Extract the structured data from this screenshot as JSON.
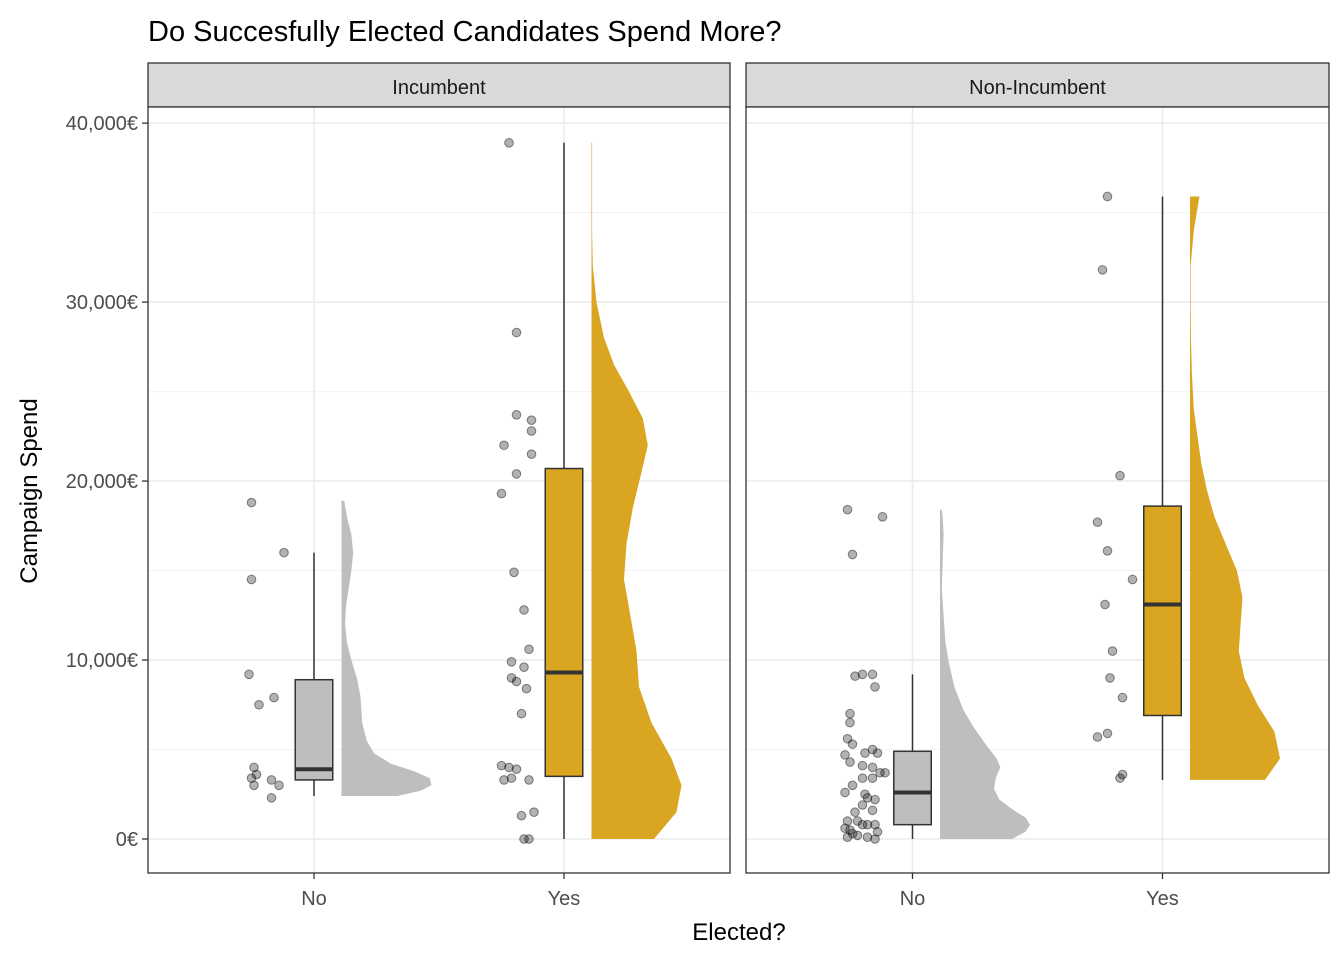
{
  "chart_data": {
    "type": "raincloud",
    "title": "Do Succesfully Elected Candidates Spend More?",
    "xlabel": "Elected?",
    "ylabel": "Campaign Spend",
    "ylim": [
      -1900,
      40900
    ],
    "y_ticks": [
      0,
      10000,
      20000,
      30000,
      40000
    ],
    "y_tick_labels": [
      "0€",
      "10,000€",
      "20,000€",
      "30,000€",
      "40,000€"
    ],
    "categories": [
      "No",
      "Yes"
    ],
    "grid": true,
    "legend": "none",
    "colors": {
      "No": "#bebebe",
      "Yes": "#daa520"
    },
    "panels": [
      {
        "name": "Incumbent",
        "groups": [
          {
            "category": "No",
            "box": {
              "whisker_low": 2400,
              "q1": 3300,
              "median": 3900,
              "q3": 8900,
              "whisker_high": 16000
            },
            "density": [
              [
                2400,
                0.62
              ],
              [
                2700,
                0.88
              ],
              [
                3000,
                1.0
              ],
              [
                3400,
                0.98
              ],
              [
                3800,
                0.8
              ],
              [
                4200,
                0.55
              ],
              [
                4800,
                0.36
              ],
              [
                5500,
                0.28
              ],
              [
                6500,
                0.23
              ],
              [
                7300,
                0.22
              ],
              [
                8000,
                0.21
              ],
              [
                9000,
                0.17
              ],
              [
                10000,
                0.11
              ],
              [
                11000,
                0.06
              ],
              [
                12000,
                0.04
              ],
              [
                13000,
                0.05
              ],
              [
                14000,
                0.08
              ],
              [
                15000,
                0.11
              ],
              [
                16000,
                0.13
              ],
              [
                17000,
                0.11
              ],
              [
                18000,
                0.06
              ],
              [
                18900,
                0.03
              ]
            ],
            "points": [
              [
                -0.25,
                18800
              ],
              [
                -0.12,
                16000
              ],
              [
                -0.25,
                14500
              ],
              [
                -0.26,
                9200
              ],
              [
                -0.22,
                7500
              ],
              [
                -0.16,
                7900
              ],
              [
                -0.24,
                4000
              ],
              [
                -0.23,
                3600
              ],
              [
                -0.25,
                3400
              ],
              [
                -0.24,
                3000
              ],
              [
                -0.17,
                3300
              ],
              [
                -0.14,
                3000
              ],
              [
                -0.17,
                2300
              ]
            ]
          },
          {
            "category": "Yes",
            "box": {
              "whisker_low": 0,
              "q1": 3500,
              "median": 9300,
              "q3": 20700,
              "whisker_high": 38900
            },
            "density": [
              [
                0,
                0.5
              ],
              [
                1500,
                0.68
              ],
              [
                3000,
                0.72
              ],
              [
                4500,
                0.64
              ],
              [
                6500,
                0.48
              ],
              [
                8500,
                0.38
              ],
              [
                10500,
                0.36
              ],
              [
                12500,
                0.31
              ],
              [
                14500,
                0.26
              ],
              [
                16500,
                0.28
              ],
              [
                18500,
                0.33
              ],
              [
                20500,
                0.4
              ],
              [
                22000,
                0.45
              ],
              [
                23500,
                0.41
              ],
              [
                25000,
                0.3
              ],
              [
                26500,
                0.18
              ],
              [
                28000,
                0.1
              ],
              [
                30000,
                0.04
              ],
              [
                32000,
                0.01
              ],
              [
                34000,
                0.005
              ],
              [
                36000,
                0.005
              ],
              [
                38900,
                0.005
              ]
            ],
            "points": [
              [
                -0.22,
                38900
              ],
              [
                -0.19,
                28300
              ],
              [
                -0.19,
                23700
              ],
              [
                -0.13,
                23400
              ],
              [
                -0.24,
                22000
              ],
              [
                -0.13,
                22800
              ],
              [
                -0.13,
                21500
              ],
              [
                -0.19,
                20400
              ],
              [
                -0.25,
                19300
              ],
              [
                -0.2,
                14900
              ],
              [
                -0.16,
                12800
              ],
              [
                -0.14,
                10600
              ],
              [
                -0.21,
                9900
              ],
              [
                -0.16,
                9600
              ],
              [
                -0.21,
                9000
              ],
              [
                -0.19,
                8800
              ],
              [
                -0.15,
                8400
              ],
              [
                -0.17,
                7000
              ],
              [
                -0.25,
                4100
              ],
              [
                -0.22,
                4000
              ],
              [
                -0.19,
                3900
              ],
              [
                -0.24,
                3300
              ],
              [
                -0.21,
                3400
              ],
              [
                -0.14,
                3300
              ],
              [
                -0.12,
                1500
              ],
              [
                -0.17,
                1300
              ],
              [
                -0.16,
                0
              ],
              [
                -0.14,
                0
              ]
            ]
          }
        ]
      },
      {
        "name": "Non-Incumbent",
        "groups": [
          {
            "category": "No",
            "box": {
              "whisker_low": 0,
              "q1": 800,
              "median": 2600,
              "q3": 4900,
              "whisker_high": 9200
            },
            "density": [
              [
                0,
                0.8
              ],
              [
                400,
                0.95
              ],
              [
                800,
                1.0
              ],
              [
                1200,
                0.95
              ],
              [
                1600,
                0.82
              ],
              [
                2200,
                0.66
              ],
              [
                2800,
                0.6
              ],
              [
                3400,
                0.62
              ],
              [
                4000,
                0.67
              ],
              [
                4500,
                0.63
              ],
              [
                5200,
                0.52
              ],
              [
                6200,
                0.38
              ],
              [
                7200,
                0.26
              ],
              [
                8500,
                0.16
              ],
              [
                9800,
                0.1
              ],
              [
                11000,
                0.06
              ],
              [
                12500,
                0.04
              ],
              [
                14000,
                0.02
              ],
              [
                15500,
                0.03
              ],
              [
                17000,
                0.04
              ],
              [
                18000,
                0.03
              ],
              [
                18400,
                0.02
              ]
            ],
            "points": [
              [
                -0.26,
                18400
              ],
              [
                -0.12,
                18000
              ],
              [
                -0.24,
                15900
              ],
              [
                -0.2,
                9200
              ],
              [
                -0.16,
                9200
              ],
              [
                -0.23,
                9100
              ],
              [
                -0.15,
                8500
              ],
              [
                -0.25,
                7000
              ],
              [
                -0.25,
                6500
              ],
              [
                -0.26,
                5600
              ],
              [
                -0.24,
                5300
              ],
              [
                -0.27,
                4700
              ],
              [
                -0.16,
                5000
              ],
              [
                -0.19,
                4800
              ],
              [
                -0.14,
                4800
              ],
              [
                -0.25,
                4300
              ],
              [
                -0.2,
                4100
              ],
              [
                -0.16,
                4000
              ],
              [
                -0.13,
                3700
              ],
              [
                -0.11,
                3700
              ],
              [
                -0.2,
                3400
              ],
              [
                -0.16,
                3400
              ],
              [
                -0.24,
                3000
              ],
              [
                -0.27,
                2600
              ],
              [
                -0.19,
                2500
              ],
              [
                -0.18,
                2300
              ],
              [
                -0.15,
                2200
              ],
              [
                -0.2,
                1900
              ],
              [
                -0.23,
                1500
              ],
              [
                -0.16,
                1600
              ],
              [
                -0.26,
                1000
              ],
              [
                -0.22,
                1000
              ],
              [
                -0.2,
                800
              ],
              [
                -0.18,
                800
              ],
              [
                -0.15,
                800
              ],
              [
                -0.27,
                600
              ],
              [
                -0.25,
                500
              ],
              [
                -0.24,
                300
              ],
              [
                -0.22,
                200
              ],
              [
                -0.26,
                100
              ],
              [
                -0.14,
                400
              ],
              [
                -0.18,
                100
              ],
              [
                -0.15,
                0
              ]
            ]
          },
          {
            "category": "Yes",
            "box": {
              "whisker_low": 3300,
              "q1": 6900,
              "median": 13100,
              "q3": 18600,
              "whisker_high": 35900
            },
            "density": [
              [
                3300,
                0.4
              ],
              [
                4500,
                0.48
              ],
              [
                6000,
                0.45
              ],
              [
                7500,
                0.36
              ],
              [
                9000,
                0.29
              ],
              [
                10500,
                0.26
              ],
              [
                12000,
                0.27
              ],
              [
                13500,
                0.28
              ],
              [
                15000,
                0.25
              ],
              [
                16500,
                0.19
              ],
              [
                18000,
                0.13
              ],
              [
                19500,
                0.09
              ],
              [
                21000,
                0.06
              ],
              [
                22500,
                0.04
              ],
              [
                24000,
                0.02
              ],
              [
                26000,
                0.01
              ],
              [
                28000,
                0.005
              ],
              [
                30000,
                0.003
              ],
              [
                32000,
                0.003
              ],
              [
                34000,
                0.02
              ],
              [
                35900,
                0.05
              ]
            ],
            "points": [
              [
                -0.22,
                35900
              ],
              [
                -0.24,
                31800
              ],
              [
                -0.17,
                20300
              ],
              [
                -0.26,
                17700
              ],
              [
                -0.22,
                16100
              ],
              [
                -0.12,
                14500
              ],
              [
                -0.23,
                13100
              ],
              [
                -0.2,
                10500
              ],
              [
                -0.21,
                9000
              ],
              [
                -0.16,
                7900
              ],
              [
                -0.26,
                5700
              ],
              [
                -0.22,
                5900
              ],
              [
                -0.16,
                3600
              ],
              [
                -0.17,
                3400
              ]
            ]
          }
        ]
      }
    ]
  }
}
